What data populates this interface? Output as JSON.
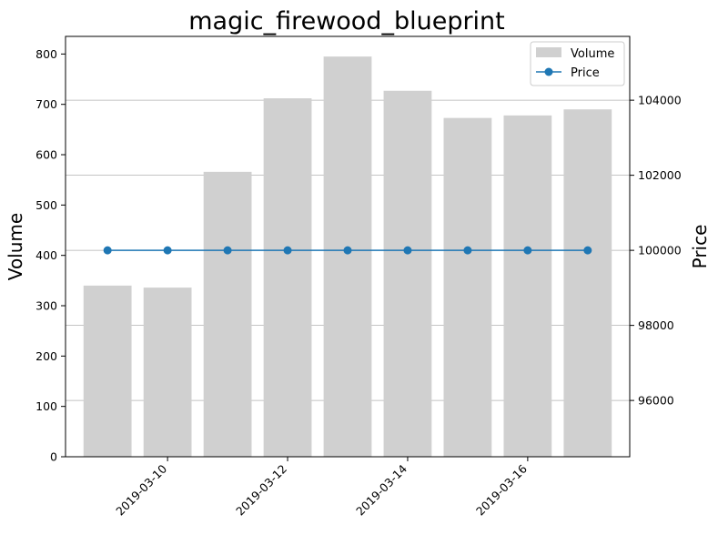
{
  "chart_data": {
    "type": "bar",
    "title": "magic_firewood_blueprint",
    "xlabel": "",
    "ylabel": "Volume",
    "y2label": "Price",
    "x": [
      "2019-03-09",
      "2019-03-10",
      "2019-03-11",
      "2019-03-12",
      "2019-03-13",
      "2019-03-14",
      "2019-03-15",
      "2019-03-16",
      "2019-03-17"
    ],
    "x_ticks": [
      "2019-03-10",
      "2019-03-12",
      "2019-03-14",
      "2019-03-16"
    ],
    "series": [
      {
        "name": "Volume",
        "type": "bar",
        "axis": "left",
        "color": "#d0d0d0",
        "values": [
          340,
          336,
          566,
          712,
          795,
          727,
          673,
          678,
          690
        ]
      },
      {
        "name": "Price",
        "type": "line",
        "axis": "right",
        "color": "#1f77b4",
        "values": [
          100000,
          100000,
          100000,
          100000,
          100000,
          100000,
          100000,
          100000,
          100000
        ]
      }
    ],
    "ylim": [
      0,
      835
    ],
    "y_ticks": [
      0,
      100,
      200,
      300,
      400,
      500,
      600,
      700,
      800
    ],
    "y2lim": [
      94500,
      105700
    ],
    "y2_ticks": [
      96000,
      98000,
      100000,
      102000,
      104000
    ],
    "grid": "right-axis horizontal",
    "legend": "top-right"
  }
}
